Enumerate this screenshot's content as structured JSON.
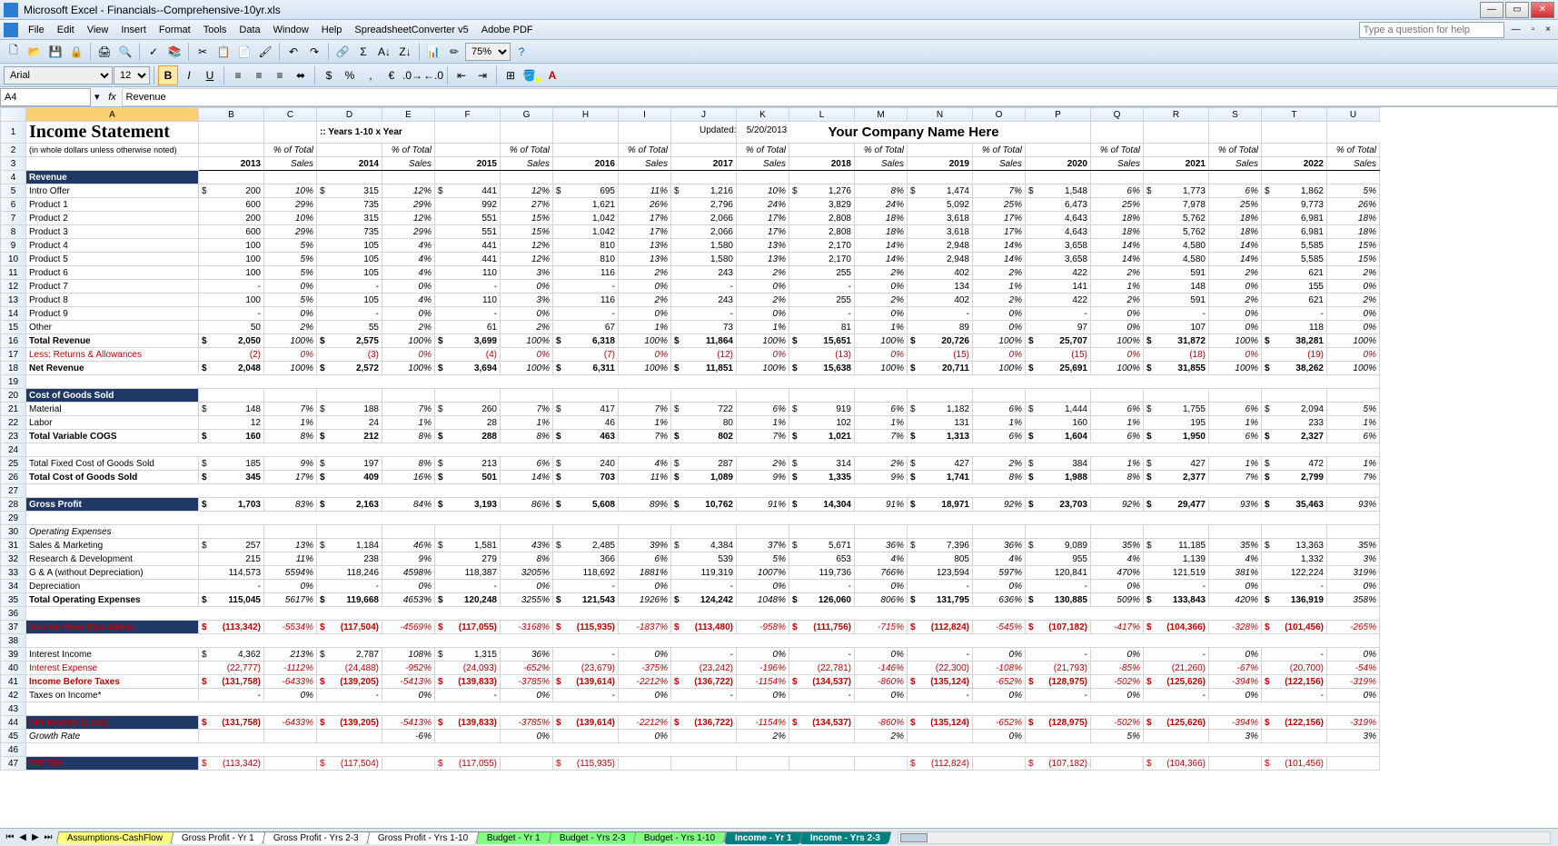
{
  "window": {
    "title": "Microsoft Excel - Financials--Comprehensive-10yr.xls"
  },
  "menu": [
    "File",
    "Edit",
    "View",
    "Insert",
    "Format",
    "Tools",
    "Data",
    "Window",
    "Help",
    "SpreadsheetConverter v5",
    "Adobe PDF"
  ],
  "help_placeholder": "Type a question for help",
  "font": {
    "name": "Arial",
    "size": "12"
  },
  "zoom": "75%",
  "namebox": "A4",
  "formula": "Revenue",
  "bold_active": true,
  "columns": [
    "A",
    "B",
    "C",
    "D",
    "E",
    "F",
    "G",
    "H",
    "I",
    "J",
    "K",
    "L",
    "M",
    "N",
    "O",
    "P",
    "Q",
    "R",
    "S",
    "T",
    "U"
  ],
  "sheet_title": "Income Statement",
  "sheet_subtitle": "(in whole dollars unless otherwise noted)",
  "period_label": ":: Years 1-10 x Year",
  "company": "Your Company Name Here",
  "updated_label": "Updated:",
  "updated_date": "5/20/2013",
  "pct_hdr_top": "% of Total",
  "pct_hdr_bot": "Sales",
  "years": [
    "2013",
    "2014",
    "2015",
    "2016",
    "2017",
    "2018",
    "2019",
    "2020",
    "2021",
    "2022"
  ],
  "colors": {
    "section_bg": "#1f3864",
    "section_fg": "#ffffff",
    "neg": "#c00000",
    "tab_yellow": "#ffff80",
    "tab_green": "#80ff80",
    "tab_teal": "#008080"
  },
  "rows": [
    {
      "n": 4,
      "type": "section",
      "label": "Revenue"
    },
    {
      "n": 5,
      "label": "Intro Offer",
      "dollar": true,
      "v": [
        "200",
        "315",
        "441",
        "695",
        "1,216",
        "1,276",
        "1,474",
        "1,548",
        "1,773",
        "1,862"
      ],
      "p": [
        "10%",
        "12%",
        "12%",
        "11%",
        "10%",
        "8%",
        "7%",
        "6%",
        "6%",
        "5%"
      ]
    },
    {
      "n": 6,
      "label": "Product 1",
      "v": [
        "600",
        "735",
        "992",
        "1,621",
        "2,796",
        "3,829",
        "5,092",
        "6,473",
        "7,978",
        "9,773"
      ],
      "p": [
        "29%",
        "29%",
        "27%",
        "26%",
        "24%",
        "24%",
        "25%",
        "25%",
        "25%",
        "26%"
      ]
    },
    {
      "n": 7,
      "label": "Product 2",
      "v": [
        "200",
        "315",
        "551",
        "1,042",
        "2,066",
        "2,808",
        "3,618",
        "4,643",
        "5,762",
        "6,981"
      ],
      "p": [
        "10%",
        "12%",
        "15%",
        "17%",
        "17%",
        "18%",
        "17%",
        "18%",
        "18%",
        "18%"
      ]
    },
    {
      "n": 8,
      "label": "Product 3",
      "v": [
        "600",
        "735",
        "551",
        "1,042",
        "2,066",
        "2,808",
        "3,618",
        "4,643",
        "5,762",
        "6,981"
      ],
      "p": [
        "29%",
        "29%",
        "15%",
        "17%",
        "17%",
        "18%",
        "17%",
        "18%",
        "18%",
        "18%"
      ]
    },
    {
      "n": 9,
      "label": "Product 4",
      "v": [
        "100",
        "105",
        "441",
        "810",
        "1,580",
        "2,170",
        "2,948",
        "3,658",
        "4,580",
        "5,585"
      ],
      "p": [
        "5%",
        "4%",
        "12%",
        "13%",
        "13%",
        "14%",
        "14%",
        "14%",
        "14%",
        "15%"
      ]
    },
    {
      "n": 10,
      "label": "Product 5",
      "v": [
        "100",
        "105",
        "441",
        "810",
        "1,580",
        "2,170",
        "2,948",
        "3,658",
        "4,580",
        "5,585"
      ],
      "p": [
        "5%",
        "4%",
        "12%",
        "13%",
        "13%",
        "14%",
        "14%",
        "14%",
        "14%",
        "15%"
      ]
    },
    {
      "n": 11,
      "label": "Product 6",
      "v": [
        "100",
        "105",
        "110",
        "116",
        "243",
        "255",
        "402",
        "422",
        "591",
        "621"
      ],
      "p": [
        "5%",
        "4%",
        "3%",
        "2%",
        "2%",
        "2%",
        "2%",
        "2%",
        "2%",
        "2%"
      ]
    },
    {
      "n": 12,
      "label": "Product 7",
      "v": [
        "-",
        "-",
        "-",
        "-",
        "-",
        "-",
        "134",
        "141",
        "148",
        "155"
      ],
      "p": [
        "0%",
        "0%",
        "0%",
        "0%",
        "0%",
        "0%",
        "1%",
        "1%",
        "0%",
        "0%"
      ]
    },
    {
      "n": 13,
      "label": "Product 8",
      "v": [
        "100",
        "105",
        "110",
        "116",
        "243",
        "255",
        "402",
        "422",
        "591",
        "621"
      ],
      "p": [
        "5%",
        "4%",
        "3%",
        "2%",
        "2%",
        "2%",
        "2%",
        "2%",
        "2%",
        "2%"
      ]
    },
    {
      "n": 14,
      "label": "Product 9",
      "v": [
        "-",
        "-",
        "-",
        "-",
        "-",
        "-",
        "-",
        "-",
        "-",
        "-"
      ],
      "p": [
        "0%",
        "0%",
        "0%",
        "0%",
        "0%",
        "0%",
        "0%",
        "0%",
        "0%",
        "0%"
      ]
    },
    {
      "n": 15,
      "label": "Other",
      "v": [
        "50",
        "55",
        "61",
        "67",
        "73",
        "81",
        "89",
        "97",
        "107",
        "118"
      ],
      "p": [
        "2%",
        "2%",
        "2%",
        "1%",
        "1%",
        "1%",
        "0%",
        "0%",
        "0%",
        "0%"
      ]
    },
    {
      "n": 16,
      "label": "Total Revenue",
      "bold": true,
      "dollar": true,
      "bt": true,
      "v": [
        "2,050",
        "2,575",
        "3,699",
        "6,318",
        "11,864",
        "15,651",
        "20,726",
        "25,707",
        "31,872",
        "38,281"
      ],
      "p": [
        "100%",
        "100%",
        "100%",
        "100%",
        "100%",
        "100%",
        "100%",
        "100%",
        "100%",
        "100%"
      ]
    },
    {
      "n": 17,
      "label": "Less: Returns & Allowances",
      "red": true,
      "v": [
        "(2)",
        "(3)",
        "(4)",
        "(7)",
        "(12)",
        "(13)",
        "(15)",
        "(15)",
        "(18)",
        "(19)"
      ],
      "p": [
        "0%",
        "0%",
        "0%",
        "0%",
        "0%",
        "0%",
        "0%",
        "0%",
        "0%",
        "0%"
      ]
    },
    {
      "n": 18,
      "label": "Net Revenue",
      "bold": true,
      "dollar": true,
      "bt": true,
      "v": [
        "2,048",
        "2,572",
        "3,694",
        "6,311",
        "11,851",
        "15,638",
        "20,711",
        "25,691",
        "31,855",
        "38,262"
      ],
      "p": [
        "100%",
        "100%",
        "100%",
        "100%",
        "100%",
        "100%",
        "100%",
        "100%",
        "100%",
        "100%"
      ]
    },
    {
      "n": 19,
      "type": "blank"
    },
    {
      "n": 20,
      "type": "section",
      "label": "Cost of Goods Sold"
    },
    {
      "n": 21,
      "label": "Material",
      "dollar": true,
      "v": [
        "148",
        "188",
        "260",
        "417",
        "722",
        "919",
        "1,182",
        "1,444",
        "1,755",
        "2,094"
      ],
      "p": [
        "7%",
        "7%",
        "7%",
        "7%",
        "6%",
        "6%",
        "6%",
        "6%",
        "6%",
        "5%"
      ]
    },
    {
      "n": 22,
      "label": "Labor",
      "v": [
        "12",
        "24",
        "28",
        "46",
        "80",
        "102",
        "131",
        "160",
        "195",
        "233"
      ],
      "p": [
        "1%",
        "1%",
        "1%",
        "1%",
        "1%",
        "1%",
        "1%",
        "1%",
        "1%",
        "1%"
      ]
    },
    {
      "n": 23,
      "label": "Total Variable COGS",
      "bold": true,
      "dollar": true,
      "bt": true,
      "v": [
        "160",
        "212",
        "288",
        "463",
        "802",
        "1,021",
        "1,313",
        "1,604",
        "1,950",
        "2,327"
      ],
      "p": [
        "8%",
        "8%",
        "8%",
        "7%",
        "7%",
        "7%",
        "6%",
        "6%",
        "6%",
        "6%"
      ]
    },
    {
      "n": 24,
      "type": "blank"
    },
    {
      "n": 25,
      "label": "Total Fixed Cost of Goods Sold",
      "dollar": true,
      "v": [
        "185",
        "197",
        "213",
        "240",
        "287",
        "314",
        "427",
        "384",
        "427",
        "472"
      ],
      "p": [
        "9%",
        "8%",
        "6%",
        "4%",
        "2%",
        "2%",
        "2%",
        "1%",
        "1%",
        "1%"
      ]
    },
    {
      "n": 26,
      "label": "Total Cost of Goods Sold",
      "bold": true,
      "dollar": true,
      "bt": true,
      "v": [
        "345",
        "409",
        "501",
        "703",
        "1,089",
        "1,335",
        "1,741",
        "1,988",
        "2,377",
        "2,799"
      ],
      "p": [
        "17%",
        "16%",
        "14%",
        "11%",
        "9%",
        "9%",
        "8%",
        "8%",
        "7%",
        "7%"
      ]
    },
    {
      "n": 27,
      "type": "blank"
    },
    {
      "n": 28,
      "type": "section",
      "label": "Gross Profit",
      "dollar": true,
      "bold": true,
      "v": [
        "1,703",
        "2,163",
        "3,193",
        "5,608",
        "10,762",
        "14,304",
        "18,971",
        "23,703",
        "29,477",
        "35,463"
      ],
      "p": [
        "83%",
        "84%",
        "86%",
        "89%",
        "91%",
        "91%",
        "92%",
        "92%",
        "93%",
        "93%"
      ]
    },
    {
      "n": 29,
      "type": "blank"
    },
    {
      "n": 30,
      "label": "Operating Expenses",
      "italic": true,
      "nodata": true
    },
    {
      "n": 31,
      "label": "Sales & Marketing",
      "dollar": true,
      "v": [
        "257",
        "1,184",
        "1,581",
        "2,485",
        "4,384",
        "5,671",
        "7,396",
        "9,089",
        "11,185",
        "13,363"
      ],
      "p": [
        "13%",
        "46%",
        "43%",
        "39%",
        "37%",
        "36%",
        "36%",
        "35%",
        "35%",
        "35%"
      ]
    },
    {
      "n": 32,
      "label": "Research & Development",
      "v": [
        "215",
        "238",
        "279",
        "366",
        "539",
        "653",
        "805",
        "955",
        "1,139",
        "1,332"
      ],
      "p": [
        "11%",
        "9%",
        "8%",
        "6%",
        "5%",
        "4%",
        "4%",
        "4%",
        "4%",
        "3%"
      ]
    },
    {
      "n": 33,
      "label": "G & A (without Depreciation)",
      "v": [
        "114,573",
        "118,246",
        "118,387",
        "118,692",
        "119,319",
        "119,736",
        "123,594",
        "120,841",
        "121,519",
        "122,224"
      ],
      "p": [
        "5594%",
        "4598%",
        "3205%",
        "1881%",
        "1007%",
        "766%",
        "597%",
        "470%",
        "381%",
        "319%"
      ]
    },
    {
      "n": 34,
      "label": "Depreciation",
      "v": [
        "-",
        "-",
        "-",
        "-",
        "-",
        "-",
        "-",
        "-",
        "-",
        "-"
      ],
      "p": [
        "0%",
        "0%",
        "0%",
        "0%",
        "0%",
        "0%",
        "0%",
        "0%",
        "0%",
        "0%"
      ]
    },
    {
      "n": 35,
      "label": "Total Operating Expenses",
      "bold": true,
      "dollar": true,
      "bt": true,
      "v": [
        "115,045",
        "119,668",
        "120,248",
        "121,543",
        "124,242",
        "126,060",
        "131,795",
        "130,885",
        "133,843",
        "136,919"
      ],
      "p": [
        "5617%",
        "4653%",
        "3255%",
        "1926%",
        "1048%",
        "806%",
        "636%",
        "509%",
        "420%",
        "358%"
      ]
    },
    {
      "n": 36,
      "type": "blank"
    },
    {
      "n": 37,
      "type": "section",
      "label": "Income from Operations",
      "dollar": true,
      "red": true,
      "bold": true,
      "v": [
        "(113,342)",
        "(117,504)",
        "(117,055)",
        "(115,935)",
        "(113,480)",
        "(111,756)",
        "(112,824)",
        "(107,182)",
        "(104,366)",
        "(101,456)"
      ],
      "p": [
        "-5534%",
        "-4569%",
        "-3168%",
        "-1837%",
        "-958%",
        "-715%",
        "-545%",
        "-417%",
        "-328%",
        "-265%"
      ]
    },
    {
      "n": 38,
      "type": "blank"
    },
    {
      "n": 39,
      "label": "Interest Income",
      "dollar": true,
      "v": [
        "4,362",
        "2,787",
        "1,315",
        "-",
        "-",
        "-",
        "-",
        "-",
        "-",
        "-"
      ],
      "p": [
        "213%",
        "108%",
        "36%",
        "0%",
        "0%",
        "0%",
        "0%",
        "0%",
        "0%",
        "0%"
      ]
    },
    {
      "n": 40,
      "label": "Interest Expense",
      "red": true,
      "v": [
        "(22,777)",
        "(24,488)",
        "(24,093)",
        "(23,679)",
        "(23,242)",
        "(22,781)",
        "(22,300)",
        "(21,793)",
        "(21,260)",
        "(20,700)"
      ],
      "p": [
        "-1112%",
        "-952%",
        "-652%",
        "-375%",
        "-196%",
        "-146%",
        "-108%",
        "-85%",
        "-67%",
        "-54%"
      ]
    },
    {
      "n": 41,
      "label": "Income Before Taxes",
      "bold": true,
      "dollar": true,
      "red": true,
      "bt": true,
      "v": [
        "(131,758)",
        "(139,205)",
        "(139,833)",
        "(139,614)",
        "(136,722)",
        "(134,537)",
        "(135,124)",
        "(128,975)",
        "(125,626)",
        "(122,156)"
      ],
      "p": [
        "-6433%",
        "-5413%",
        "-3785%",
        "-2212%",
        "-1154%",
        "-860%",
        "-652%",
        "-502%",
        "-394%",
        "-319%"
      ]
    },
    {
      "n": 42,
      "label": "Taxes on Income*",
      "v": [
        "-",
        "-",
        "-",
        "-",
        "-",
        "-",
        "-",
        "-",
        "-",
        "-"
      ],
      "p": [
        "0%",
        "0%",
        "0%",
        "0%",
        "0%",
        "0%",
        "0%",
        "0%",
        "0%",
        "0%"
      ]
    },
    {
      "n": 43,
      "type": "blank"
    },
    {
      "n": 44,
      "type": "section",
      "label": "Net Income (Loss)",
      "dollar": true,
      "red": true,
      "bold": true,
      "v": [
        "(131,758)",
        "(139,205)",
        "(139,833)",
        "(139,614)",
        "(136,722)",
        "(134,537)",
        "(135,124)",
        "(128,975)",
        "(125,626)",
        "(122,156)"
      ],
      "p": [
        "-6433%",
        "-5413%",
        "-3785%",
        "-2212%",
        "-1154%",
        "-860%",
        "-652%",
        "-502%",
        "-394%",
        "-319%"
      ]
    },
    {
      "n": 45,
      "label": "Growth Rate",
      "italic": true,
      "v": [
        "",
        "-6%",
        "0%",
        "0%",
        "2%",
        "2%",
        "0%",
        "5%",
        "3%",
        "3%"
      ],
      "single": true
    },
    {
      "n": 46,
      "type": "blank"
    },
    {
      "n": 47,
      "type": "section",
      "label": "EBITDA",
      "dollar": true,
      "red": true,
      "v": [
        "(113,342)",
        "(117,504)",
        "(117,055)",
        "(115,935)",
        "",
        "",
        "(112,824)",
        "(107,182)",
        "(104,366)",
        "(101,456)"
      ],
      "nop": true
    }
  ],
  "tabs": [
    {
      "label": "Assumptions-CashFlow",
      "cls": "yellow"
    },
    {
      "label": "Gross Profit - Yr 1",
      "cls": ""
    },
    {
      "label": "Gross Profit - Yrs 2-3",
      "cls": ""
    },
    {
      "label": "Gross Profit - Yrs 1-10",
      "cls": ""
    },
    {
      "label": "Budget - Yr 1",
      "cls": "green"
    },
    {
      "label": "Budget - Yrs 2-3",
      "cls": "green"
    },
    {
      "label": "Budget - Yrs 1-10",
      "cls": "green"
    },
    {
      "label": "Income - Yr 1",
      "cls": "teal"
    },
    {
      "label": "Income - Yrs 2-3",
      "cls": "teal"
    }
  ]
}
